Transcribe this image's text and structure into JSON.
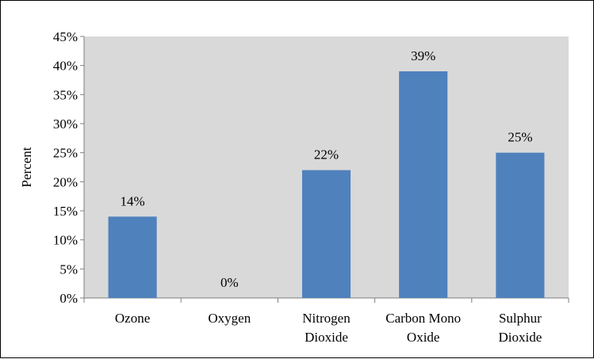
{
  "chart_data": {
    "type": "bar",
    "categories": [
      [
        "Ozone"
      ],
      [
        "Oxygen"
      ],
      [
        "Nitrogen",
        "Dioxide"
      ],
      [
        "Carbon Mono",
        "Oxide"
      ],
      [
        "Sulphur",
        "Dioxide"
      ]
    ],
    "values": [
      14,
      0,
      22,
      39,
      25
    ],
    "data_labels": [
      "14%",
      "0%",
      "22%",
      "39%",
      "25%"
    ],
    "ylabel": "Percent",
    "ylim": [
      0,
      45
    ],
    "yticks": [
      0,
      5,
      10,
      15,
      20,
      25,
      30,
      35,
      40,
      45
    ],
    "ytick_labels": [
      "0%",
      "5%",
      "10%",
      "15%",
      "20%",
      "25%",
      "30%",
      "35%",
      "40%",
      "45%"
    ],
    "grid": false,
    "legend": "none",
    "bar_color": "#4F81BD",
    "plot_background": "#D9D9D9"
  }
}
